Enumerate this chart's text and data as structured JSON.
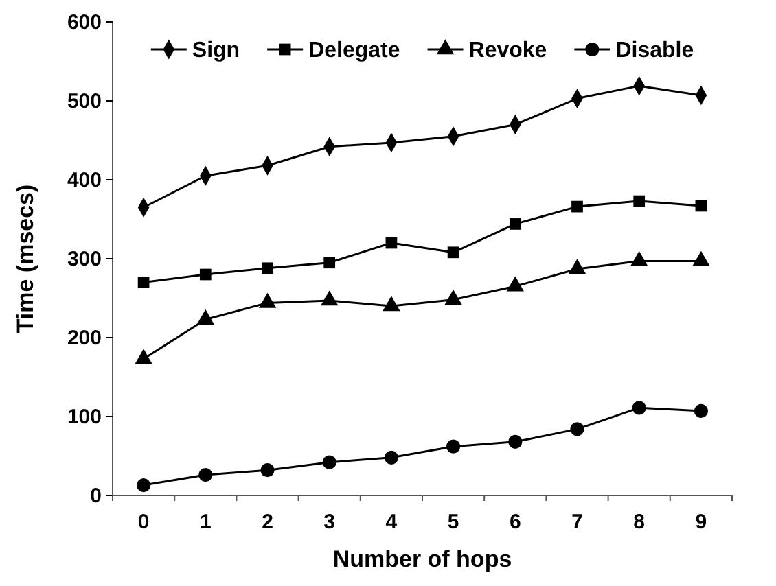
{
  "chart_data": {
    "type": "line",
    "xlabel": "Number of hops",
    "ylabel": "Time (msecs)",
    "categories": [
      "0",
      "1",
      "2",
      "3",
      "4",
      "5",
      "6",
      "7",
      "8",
      "9"
    ],
    "ylim": [
      0,
      600
    ],
    "yticks": [
      0,
      100,
      200,
      300,
      400,
      500,
      600
    ],
    "grid": false,
    "legend": "top",
    "line_style": "solid",
    "series": [
      {
        "name": "Sign",
        "color": "#000000",
        "marker": "diamond",
        "values": [
          365,
          405,
          418,
          442,
          447,
          455,
          470,
          503,
          519,
          507
        ]
      },
      {
        "name": "Delegate",
        "color": "#000000",
        "marker": "square",
        "values": [
          270,
          280,
          288,
          295,
          320,
          308,
          344,
          366,
          373,
          367
        ]
      },
      {
        "name": "Revoke",
        "color": "#000000",
        "marker": "triangle",
        "values": [
          173,
          223,
          244,
          247,
          240,
          248,
          265,
          287,
          297,
          297
        ]
      },
      {
        "name": "Disable",
        "color": "#000000",
        "marker": "circle",
        "values": [
          13,
          26,
          32,
          42,
          48,
          62,
          68,
          84,
          111,
          107
        ]
      }
    ]
  }
}
